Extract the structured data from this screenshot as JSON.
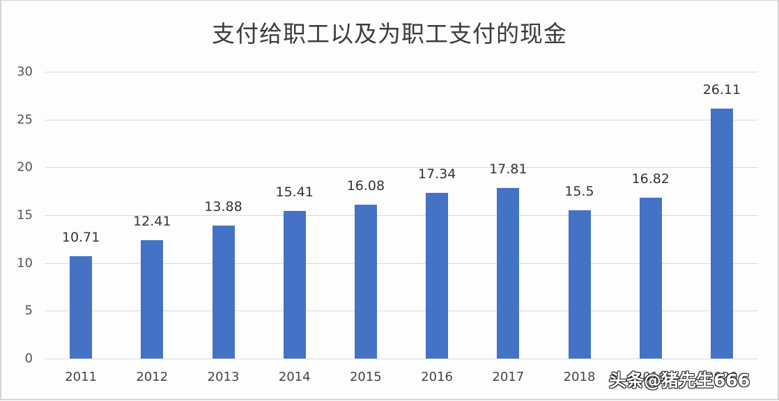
{
  "chart_data": {
    "type": "bar",
    "title": "支付给职工以及为职工支付的现金",
    "categories": [
      "2011",
      "2012",
      "2013",
      "2014",
      "2015",
      "2016",
      "2017",
      "2018",
      "2019",
      "2020"
    ],
    "values": [
      10.71,
      12.41,
      13.88,
      15.41,
      16.08,
      17.34,
      17.81,
      15.5,
      16.82,
      26.11
    ],
    "data_labels": [
      "10.71",
      "12.41",
      "13.88",
      "15.41",
      "16.08",
      "17.34",
      "17.81",
      "15.5",
      "16.82",
      "26.11"
    ],
    "xlabel": "",
    "ylabel": "",
    "ylim": [
      0,
      30
    ],
    "yticks": [
      "0",
      "5",
      "10",
      "15",
      "20",
      "25",
      "30"
    ],
    "grid": true,
    "legend": "none",
    "bar_color": "#4472c4"
  },
  "watermark": "头条@猪先生666"
}
